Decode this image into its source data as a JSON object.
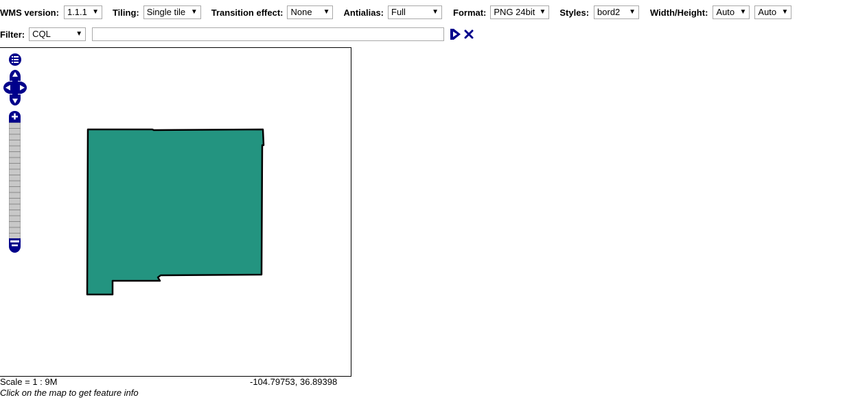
{
  "toolbar": {
    "wms_version": {
      "label": "WMS version:",
      "value": "1.1.1"
    },
    "tiling": {
      "label": "Tiling:",
      "value": "Single tile"
    },
    "transition": {
      "label": "Transition effect:",
      "value": "None"
    },
    "antialias": {
      "label": "Antialias:",
      "value": "Full"
    },
    "format": {
      "label": "Format:",
      "value": "PNG 24bit"
    },
    "styles": {
      "label": "Styles:",
      "value": "bord2"
    },
    "size": {
      "label": "Width/Height:",
      "width_value": "Auto",
      "height_value": "Auto"
    }
  },
  "filter": {
    "label": "Filter:",
    "type_value": "CQL",
    "text_value": ""
  },
  "map": {
    "polygon_fill": "#239480",
    "polygon_stroke": "#000000",
    "control_color": "#00008b",
    "icons": [
      "layer-switcher-icon",
      "pan-up-icon",
      "pan-left-icon",
      "pan-right-icon",
      "pan-down-icon",
      "zoom-in-icon",
      "zoom-out-icon",
      "apply-filter-icon",
      "reset-filter-icon"
    ]
  },
  "status": {
    "scale": "Scale = 1 : 9M",
    "coords": "-104.79753, 36.89398",
    "hint": "Click on the map to get feature info"
  }
}
